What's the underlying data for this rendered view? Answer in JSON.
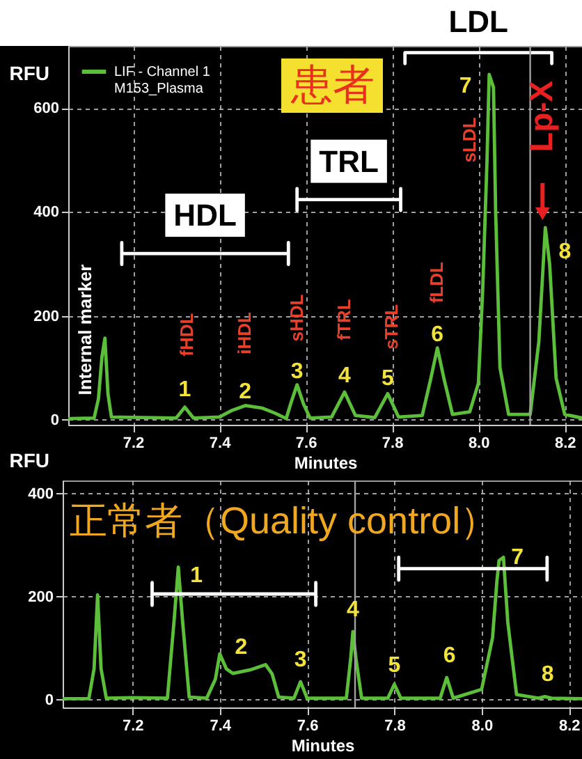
{
  "chart_data": [
    {
      "type": "line",
      "title": "患者",
      "xlabel": "Minutes",
      "ylabel": "RFU",
      "xlim": [
        7.05,
        8.24
      ],
      "xticks": [
        7.2,
        7.4,
        7.6,
        7.8,
        {
          "value": 8,
          "label": "8.0"
        },
        8.2
      ],
      "ylim": [
        -10,
        720
      ],
      "yticks": [
        0,
        200,
        400,
        600
      ],
      "grid": true,
      "legend": "top left",
      "series": [
        {
          "name": "LIF - Channel 1\nM153_Plasma",
          "color": "#5cbf3a",
          "x": [
            7.05,
            7.11,
            7.12,
            7.128,
            7.135,
            7.142,
            7.15,
            7.3,
            7.32,
            7.34,
            7.4,
            7.43,
            7.46,
            7.5,
            7.53,
            7.555,
            7.565,
            7.58,
            7.595,
            7.61,
            7.66,
            7.69,
            7.715,
            7.76,
            7.79,
            7.815,
            7.87,
            7.89,
            7.905,
            7.92,
            7.94,
            7.98,
            8.0,
            8.01,
            8.02,
            8.025,
            8.035,
            8.04,
            8.05,
            8.07,
            8.12,
            8.14,
            8.155,
            8.165,
            8.18,
            8.2,
            8.24
          ],
          "values": [
            2,
            3,
            40,
            120,
            157,
            50,
            5,
            3,
            24,
            3,
            5,
            18,
            27,
            22,
            12,
            2,
            30,
            67,
            30,
            3,
            5,
            53,
            8,
            4,
            50,
            5,
            8,
            80,
            138,
            80,
            10,
            15,
            70,
            250,
            500,
            665,
            640,
            400,
            100,
            10,
            10,
            150,
            370,
            300,
            80,
            10,
            3
          ]
        },
        {
          "color": "#ffffff",
          "x": [
            7.174,
            7.174,
            7.174,
            7.56,
            7.56,
            7.56
          ],
          "values": [
            299,
            341,
            320,
            320,
            341,
            299
          ]
        },
        {
          "color": "#ffffff",
          "x": [
            7.58,
            7.58,
            7.58,
            7.82,
            7.82,
            7.82
          ],
          "values": [
            403,
            445,
            424,
            424,
            445,
            403
          ]
        },
        {
          "color": "#ffffff",
          "x": [
            7.83,
            7.83,
            8.17,
            8.17
          ],
          "values": [
            686,
            707,
            707,
            686
          ]
        }
      ],
      "ref_lines": [
        {
          "axis": "x",
          "value": 8.12,
          "color": "#a0a0a0"
        }
      ],
      "annotations": [
        {
          "text": "Internal marker",
          "x": 7.135,
          "y": 157
        },
        {
          "text": "fHDL",
          "x": 7.32,
          "y": 24
        },
        {
          "text": "iHDL",
          "x": 7.46,
          "y": 27
        },
        {
          "text": "sHDL",
          "x": 7.58,
          "y": 67
        },
        {
          "text": "fTRL",
          "x": 7.69,
          "y": 53
        },
        {
          "text": "sTRL",
          "x": 7.79,
          "y": 50
        },
        {
          "text": "fLDL",
          "x": 7.905,
          "y": 138
        },
        {
          "text": "sLDL",
          "x": 8.025,
          "y": 665
        },
        {
          "text": "1",
          "x": 7.32,
          "y": 24
        },
        {
          "text": "2",
          "x": 7.46,
          "y": 27
        },
        {
          "text": "3",
          "x": 7.58,
          "y": 67
        },
        {
          "text": "4",
          "x": 7.69,
          "y": 53
        },
        {
          "text": "5",
          "x": 7.79,
          "y": 50
        },
        {
          "text": "6",
          "x": 7.905,
          "y": 138
        },
        {
          "text": "7",
          "x": 8.025,
          "y": 665
        },
        {
          "text": "8",
          "x": 8.155,
          "y": 370
        },
        {
          "text": "Lp-X",
          "x": 8.155,
          "y": 370
        },
        {
          "text": "HDL",
          "x": 7.367,
          "y": 320
        },
        {
          "text": "TRL",
          "x": 7.7,
          "y": 424
        },
        {
          "text": "LDL",
          "x": 8.0,
          "y": 707
        }
      ]
    },
    {
      "type": "line",
      "title": "正常者（Quality control）",
      "xlabel": "Minutes",
      "ylabel": "RFU",
      "xlim": [
        7.04,
        8.23
      ],
      "xticks": [
        7.2,
        7.4,
        7.6,
        7.8,
        {
          "value": 8,
          "label": "8.0"
        },
        8.2
      ],
      "ylim": [
        -15,
        425
      ],
      "yticks": [
        0,
        200,
        400
      ],
      "grid": true,
      "series": [
        {
          "color": "#5cbf3a",
          "x": [
            7.04,
            7.1,
            7.112,
            7.12,
            7.128,
            7.14,
            7.2,
            7.28,
            7.295,
            7.305,
            7.315,
            7.33,
            7.37,
            7.39,
            7.4,
            7.415,
            7.43,
            7.47,
            7.505,
            7.52,
            7.535,
            7.57,
            7.585,
            7.6,
            7.69,
            7.7,
            7.705,
            7.712,
            7.725,
            7.785,
            7.8,
            7.815,
            7.905,
            7.92,
            7.935,
            8.0,
            8.025,
            8.035,
            8.04,
            8.05,
            8.06,
            8.08,
            8.13,
            8.145,
            8.16,
            8.23
          ],
          "values": [
            2,
            2,
            60,
            203,
            60,
            3,
            4,
            3,
            150,
            257,
            150,
            5,
            3,
            40,
            89,
            60,
            51,
            58,
            68,
            50,
            5,
            3,
            35,
            3,
            3,
            80,
            132,
            80,
            3,
            3,
            30,
            3,
            3,
            43,
            3,
            20,
            120,
            230,
            270,
            276,
            150,
            10,
            3,
            6,
            3,
            2
          ]
        },
        {
          "color": "#ffffff",
          "x": [
            7.245,
            7.245,
            7.245,
            7.62,
            7.62,
            7.62
          ],
          "values": [
            183,
            227,
            205,
            205,
            227,
            183
          ]
        },
        {
          "color": "#ffffff",
          "x": [
            7.81,
            7.81,
            7.81,
            8.15,
            8.15,
            8.15
          ],
          "values": [
            232,
            276,
            254,
            254,
            276,
            232
          ]
        }
      ],
      "ref_lines": [
        {
          "axis": "x",
          "value": 7.71,
          "color": "#a0a0a0"
        }
      ],
      "annotations": [
        {
          "text": "1",
          "x": 7.305,
          "y": 257
        },
        {
          "text": "2",
          "x": 7.43,
          "y": 51
        },
        {
          "text": "3",
          "x": 7.585,
          "y": 35
        },
        {
          "text": "4",
          "x": 7.705,
          "y": 132
        },
        {
          "text": "5",
          "x": 7.8,
          "y": 30
        },
        {
          "text": "6",
          "x": 7.92,
          "y": 43
        },
        {
          "text": "7",
          "x": 8.05,
          "y": 276
        },
        {
          "text": "8",
          "x": 8.145,
          "y": 6
        }
      ]
    }
  ]
}
